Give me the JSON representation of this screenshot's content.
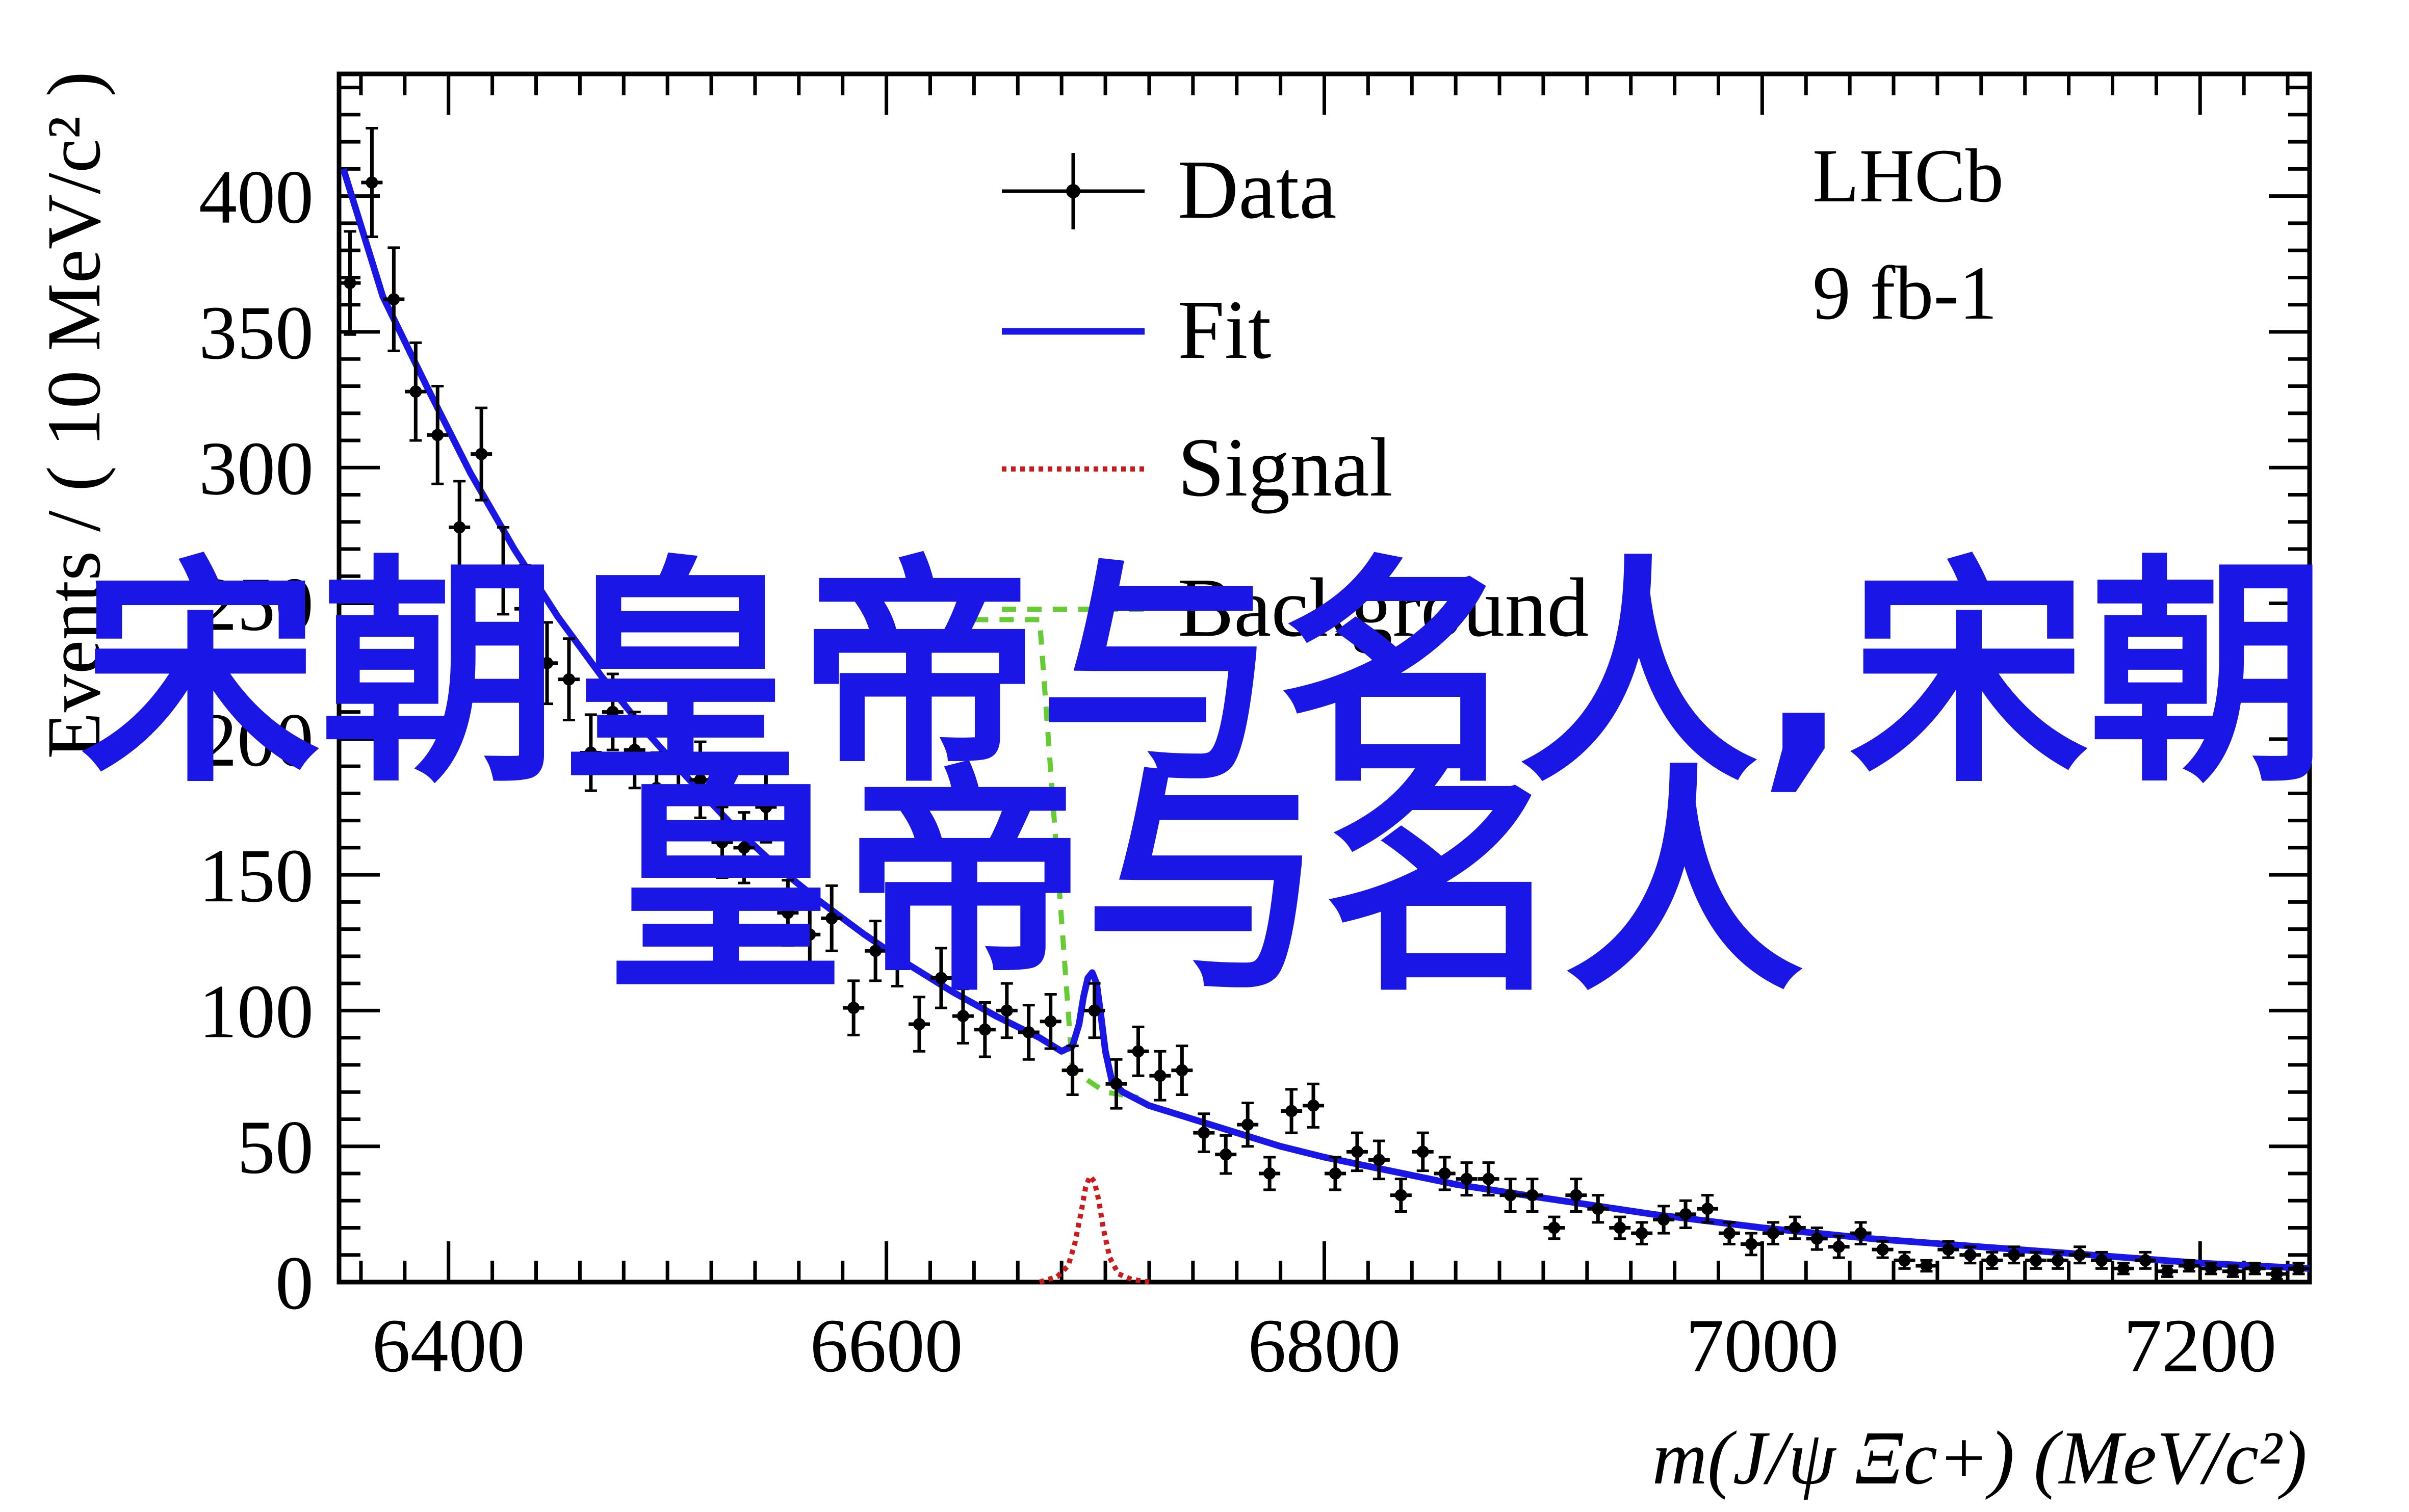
{
  "chart_data": {
    "type": "scatter",
    "xlabel": "m(J/ψ Ξc+) (MeV/c²)",
    "ylabel": "Events / ( 10 MeV/c² )",
    "xlim": [
      6350,
      7250
    ],
    "ylim": [
      0,
      445
    ],
    "x_ticks": [
      6400,
      6600,
      6800,
      7000,
      7200
    ],
    "y_ticks": [
      0,
      50,
      100,
      150,
      200,
      250,
      300,
      350,
      400
    ],
    "annotations": [
      "LHCb",
      "9 fb-1"
    ],
    "legend": {
      "placement": "top-center",
      "entries": [
        {
          "name": "Data",
          "style": "errorbar",
          "color": "#000000"
        },
        {
          "name": "Fit",
          "style": "solid",
          "color": "#1a17e6"
        },
        {
          "name": "Signal",
          "style": "dotted",
          "color": "#cc1a1a"
        },
        {
          "name": "Background",
          "style": "dashed",
          "color": "#66cc33"
        }
      ]
    },
    "series": [
      {
        "name": "Data",
        "x": [
          6355,
          6365,
          6375,
          6385,
          6395,
          6405,
          6415,
          6425,
          6435,
          6445,
          6455,
          6465,
          6475,
          6485,
          6495,
          6505,
          6515,
          6525,
          6535,
          6545,
          6555,
          6565,
          6575,
          6585,
          6595,
          6605,
          6615,
          6625,
          6635,
          6645,
          6655,
          6665,
          6675,
          6685,
          6695,
          6705,
          6715,
          6725,
          6735,
          6745,
          6755,
          6765,
          6775,
          6785,
          6795,
          6805,
          6815,
          6825,
          6835,
          6845,
          6855,
          6865,
          6875,
          6885,
          6895,
          6905,
          6915,
          6925,
          6935,
          6945,
          6955,
          6965,
          6975,
          6985,
          6995,
          7005,
          7015,
          7025,
          7035,
          7045,
          7055,
          7065,
          7075,
          7085,
          7095,
          7105,
          7115,
          7125,
          7135,
          7145,
          7155,
          7165,
          7175,
          7185,
          7195,
          7205,
          7215,
          7225,
          7235,
          7245
        ],
        "y": [
          368,
          405,
          362,
          328,
          312,
          278,
          305,
          262,
          248,
          228,
          222,
          195,
          210,
          196,
          182,
          190,
          185,
          162,
          160,
          175,
          136,
          128,
          134,
          101,
          122,
          120,
          95,
          112,
          98,
          93,
          100,
          92,
          96,
          78,
          100,
          73,
          85,
          76,
          78,
          55,
          47,
          58,
          40,
          63,
          65,
          40,
          48,
          45,
          32,
          48,
          40,
          38,
          38,
          32,
          32,
          20,
          32,
          27,
          20,
          18,
          23,
          25,
          27,
          18,
          14,
          18,
          20,
          16,
          13,
          18,
          12,
          8,
          6,
          12,
          10,
          8,
          10,
          8,
          8,
          10,
          8,
          5,
          8,
          4,
          6,
          5,
          4,
          5,
          3,
          5
        ],
        "yerr": [
          19,
          20,
          19,
          18,
          18,
          17,
          17,
          16,
          16,
          15,
          15,
          14,
          14,
          14,
          13,
          14,
          14,
          13,
          13,
          13,
          12,
          11,
          12,
          10,
          11,
          11,
          10,
          11,
          10,
          10,
          10,
          10,
          10,
          9,
          10,
          9,
          9,
          9,
          9,
          7,
          7,
          8,
          6,
          8,
          8,
          6,
          7,
          7,
          6,
          7,
          6,
          6,
          6,
          6,
          6,
          4,
          6,
          5,
          4,
          4,
          5,
          5,
          5,
          4,
          4,
          4,
          4,
          4,
          4,
          4,
          3,
          3,
          2,
          3,
          3,
          3,
          3,
          3,
          3,
          3,
          3,
          2,
          3,
          2,
          2,
          2,
          2,
          2,
          2,
          2
        ]
      },
      {
        "name": "Fit",
        "x": [
          6352,
          6370,
          6390,
          6410,
          6430,
          6450,
          6470,
          6490,
          6510,
          6530,
          6550,
          6570,
          6590,
          6610,
          6630,
          6650,
          6670,
          6680,
          6685,
          6688,
          6690,
          6692,
          6694,
          6696,
          6698,
          6700,
          6703,
          6708,
          6720,
          6740,
          6760,
          6780,
          6800,
          6830,
          6860,
          6900,
          6950,
          7000,
          7050,
          7100,
          7150,
          7200,
          7250
        ],
        "y": [
          410,
          363,
          330,
          298,
          270,
          245,
          223,
          203,
          185,
          168,
          153,
          140,
          128,
          117,
          107,
          98,
          90,
          85,
          87,
          95,
          105,
          112,
          114,
          110,
          98,
          85,
          74,
          70,
          65,
          60,
          55,
          50,
          46,
          41,
          36,
          31,
          25,
          20,
          16,
          13,
          10,
          7,
          5
        ]
      },
      {
        "name": "Signal",
        "x": [
          6670,
          6678,
          6683,
          6686,
          6689,
          6691,
          6693,
          6695,
          6697,
          6699,
          6702,
          6706,
          6712,
          6720
        ],
        "y": [
          0,
          2,
          6,
          14,
          26,
          35,
          39,
          37,
          30,
          20,
          9,
          3,
          1,
          0
        ]
      },
      {
        "name": "Background",
        "x": [
          6640,
          6655,
          6670,
          6685,
          6700,
          6715
        ],
        "y": [
          244,
          244,
          244,
          78,
          70,
          68
        ]
      }
    ]
  },
  "overlay": {
    "line1": "宋朝皇帝与名人,宋朝",
    "line2": "皇帝与名人"
  }
}
